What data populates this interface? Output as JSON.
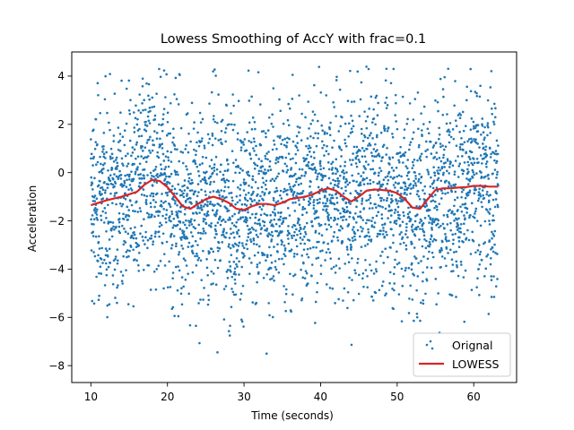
{
  "chart_data": {
    "type": "scatter",
    "title": "Lowess Smoothing of AccY with frac=0.1",
    "xlabel": "Time (seconds)",
    "ylabel": "Acceleration",
    "xlim": [
      7.5,
      65.6
    ],
    "ylim": [
      -8.7,
      5.0
    ],
    "xticks": [
      10,
      20,
      30,
      40,
      50,
      60
    ],
    "yticks": [
      -8,
      -6,
      -4,
      -2,
      0,
      2,
      4
    ],
    "grid": false,
    "legend_position": "lower-right",
    "colors": {
      "scatter": "#1f77b4",
      "lowess": "#d62728"
    },
    "series": [
      {
        "name": "Orignal",
        "type": "scatter",
        "x_range": [
          10,
          63.2
        ],
        "y_range": [
          -8.0,
          4.4
        ]
      },
      {
        "name": "LOWESS",
        "type": "line",
        "x": [
          10,
          12,
          14,
          16,
          17,
          18,
          19,
          20,
          21,
          22,
          23,
          24,
          25,
          26,
          27,
          28,
          29,
          30,
          31,
          32,
          33,
          34,
          35,
          36,
          37,
          38,
          39,
          40,
          41,
          42,
          43,
          44,
          45,
          46,
          47,
          48,
          49,
          50,
          51,
          52,
          53,
          54,
          55,
          56,
          57,
          58,
          59,
          60,
          61,
          62,
          63.2
        ],
        "y": [
          -1.35,
          -1.15,
          -1.0,
          -0.8,
          -0.5,
          -0.3,
          -0.35,
          -0.6,
          -1.0,
          -1.4,
          -1.5,
          -1.3,
          -1.1,
          -1.0,
          -1.1,
          -1.25,
          -1.5,
          -1.55,
          -1.4,
          -1.3,
          -1.3,
          -1.35,
          -1.25,
          -1.1,
          -1.05,
          -1.0,
          -0.9,
          -0.75,
          -0.65,
          -0.75,
          -1.0,
          -1.2,
          -1.0,
          -0.75,
          -0.7,
          -0.72,
          -0.75,
          -0.85,
          -1.1,
          -1.45,
          -1.5,
          -1.1,
          -0.72,
          -0.65,
          -0.65,
          -0.62,
          -0.6,
          -0.55,
          -0.55,
          -0.58,
          -0.58
        ]
      }
    ]
  }
}
